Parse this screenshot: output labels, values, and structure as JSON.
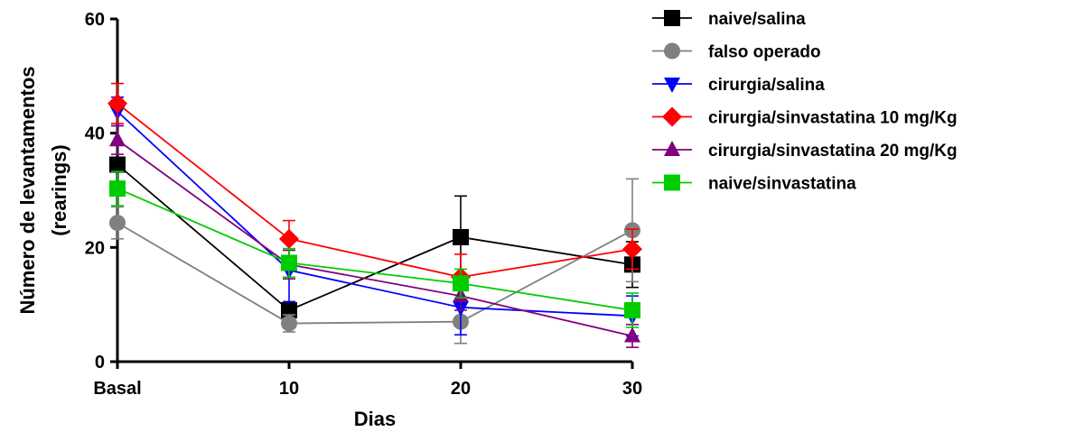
{
  "chart_data": {
    "type": "line",
    "title": "",
    "xlabel": "Dias",
    "ylabel_lines": [
      "Número de levantamentos",
      "(rearings)"
    ],
    "categories": [
      "Basal",
      "10",
      "20",
      "30"
    ],
    "x": [
      0,
      10,
      20,
      30
    ],
    "ylim": [
      0,
      60
    ],
    "yticks": [
      0,
      20,
      40,
      60
    ],
    "grid": false,
    "legend_position": "top-right",
    "series": [
      {
        "name": "naive/salina",
        "color": "#000000",
        "marker": "square",
        "values": [
          34.5,
          9.0,
          21.8,
          17.0
        ],
        "err": [
          3.5,
          1.5,
          7.2,
          4.0
        ]
      },
      {
        "name": "falso operado",
        "color": "#808080",
        "marker": "circle",
        "values": [
          24.3,
          6.7,
          7.0,
          23.0
        ],
        "err": [
          2.8,
          1.5,
          3.8,
          9.0
        ]
      },
      {
        "name": "cirurgia/salina",
        "color": "#0000ff",
        "marker": "triangle-down",
        "values": [
          43.8,
          16.0,
          9.5,
          8.0
        ],
        "err": [
          2.5,
          5.5,
          4.8,
          3.5
        ]
      },
      {
        "name": "cirurgia/sinvastatina 10 mg/Kg",
        "color": "#ff0000",
        "marker": "diamond",
        "values": [
          45.2,
          21.5,
          14.8,
          19.7
        ],
        "err": [
          3.5,
          3.2,
          4.0,
          3.5
        ]
      },
      {
        "name": "cirurgia/sinvastatina 20 mg/Kg",
        "color": "#800080",
        "marker": "triangle-up",
        "values": [
          38.8,
          17.0,
          11.5,
          4.5
        ],
        "err": [
          2.5,
          2.5,
          2.5,
          2.0
        ]
      },
      {
        "name": "naive/sinvastatina",
        "color": "#00cc00",
        "marker": "square",
        "values": [
          30.3,
          17.3,
          13.7,
          9.0
        ],
        "err": [
          3.0,
          2.5,
          2.5,
          3.0
        ]
      }
    ]
  }
}
